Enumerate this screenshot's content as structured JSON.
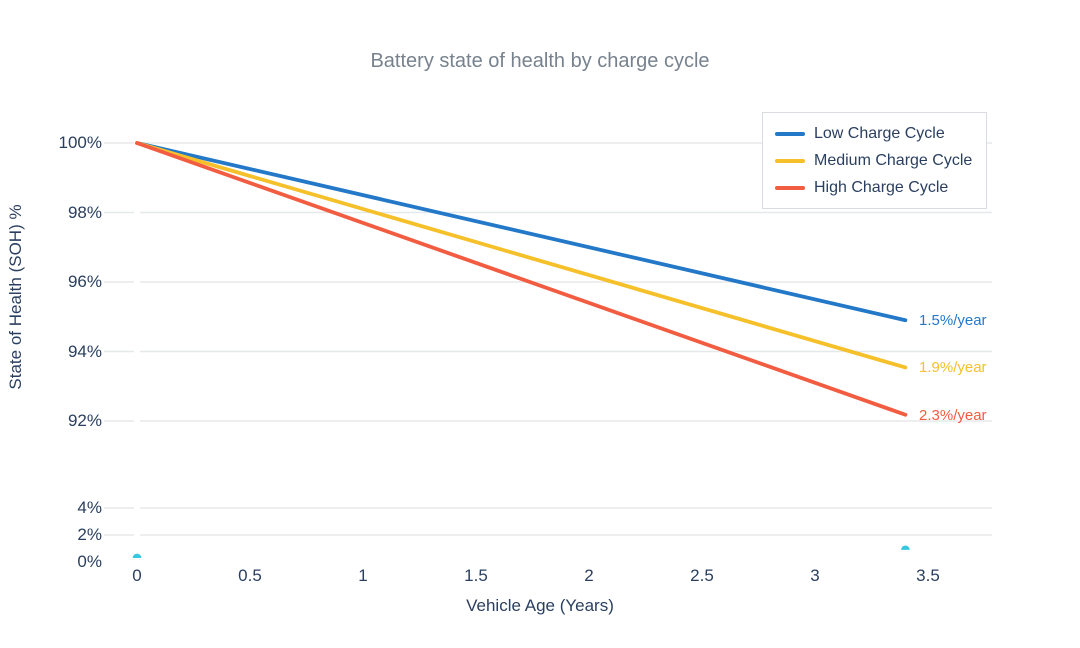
{
  "chart_data": {
    "type": "line",
    "title": "Battery state of health by charge cycle",
    "xlabel": "Vehicle Age (Years)",
    "ylabel": "State of Health (SOH) %",
    "x_ticks": [
      {
        "v": 0,
        "label": "0"
      },
      {
        "v": 0.5,
        "label": "0.5"
      },
      {
        "v": 1,
        "label": "1"
      },
      {
        "v": 1.5,
        "label": "1.5"
      },
      {
        "v": 2,
        "label": "2"
      },
      {
        "v": 2.5,
        "label": "2.5"
      },
      {
        "v": 3,
        "label": "3"
      },
      {
        "v": 3.5,
        "label": "3.5"
      }
    ],
    "y_ticks": [
      {
        "v": 100,
        "label": "100%",
        "grid": true
      },
      {
        "v": 98,
        "label": "98%",
        "grid": true
      },
      {
        "v": 96,
        "label": "96%",
        "grid": true
      },
      {
        "v": 94,
        "label": "94%",
        "grid": true
      },
      {
        "v": 92,
        "label": "92%",
        "grid": true
      },
      {
        "v": 4,
        "label": "4%",
        "grid": true
      },
      {
        "v": 2,
        "label": "2%",
        "grid": true
      },
      {
        "v": 0,
        "label": "0%",
        "grid": false
      }
    ],
    "axis": {
      "x_range": [
        0,
        3.5
      ],
      "y_axis_break": true,
      "y_segments": [
        [
          92,
          100
        ],
        [
          0,
          4
        ]
      ],
      "grid": true,
      "gridline_color": "#e6e9ec"
    },
    "legend_position": "top-right",
    "series": [
      {
        "name": "Low Charge Cycle",
        "color": "#2478c8",
        "rate_per_year": 1.5,
        "points": [
          [
            0,
            100
          ],
          [
            3.4,
            94.9
          ]
        ],
        "annotation": "1.5%/year"
      },
      {
        "name": "Medium Charge Cycle",
        "color": "#f5c02a",
        "rate_per_year": 1.9,
        "points": [
          [
            0,
            100
          ],
          [
            3.4,
            93.54
          ]
        ],
        "annotation": "1.9%/year"
      },
      {
        "name": "High Charge Cycle",
        "color": "#f25c41",
        "rate_per_year": 2.3,
        "points": [
          [
            0,
            100
          ],
          [
            3.4,
            92.18
          ]
        ],
        "annotation": "2.3%/year"
      }
    ],
    "extra_markers": {
      "name": "baseline-markers",
      "color": "#35c8e0",
      "points": [
        [
          0,
          0.3
        ],
        [
          3.4,
          0.9
        ]
      ]
    }
  },
  "colors": {
    "title_text": "#77828e",
    "axis_text": "#2a3f5f",
    "legend_border": "#d9dde1",
    "background": "#ffffff"
  }
}
